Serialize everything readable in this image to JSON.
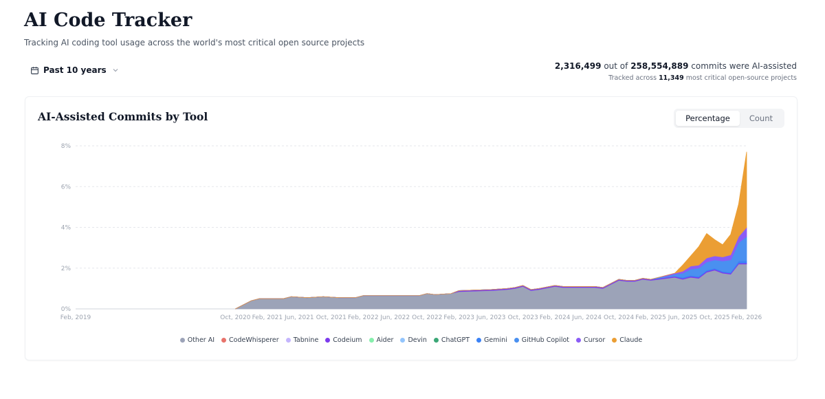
{
  "header": {
    "title": "AI Code Tracker",
    "subtitle": "Tracking AI coding tool usage across the world's most critical open source projects"
  },
  "filter": {
    "range_label": "Past 10 years",
    "icon": "calendar-icon"
  },
  "stats": {
    "ai_commits": "2,316,499",
    "out_of_text": "out of",
    "total_commits": "258,554,889",
    "suffix": "commits were AI-assisted",
    "tracked_prefix": "Tracked across",
    "projects": "11,349",
    "tracked_suffix": "most critical open-source projects"
  },
  "card": {
    "title": "AI-Assisted Commits by Tool",
    "toggle": {
      "percentage": "Percentage",
      "count": "Count",
      "active": "percentage"
    }
  },
  "chart_data": {
    "type": "area",
    "stacked": true,
    "title": "AI-Assisted Commits by Tool",
    "ylim": [
      0,
      8
    ],
    "y_ticks": [
      0,
      2,
      4,
      6,
      8
    ],
    "y_tick_labels": [
      "0%",
      "2%",
      "4%",
      "6%",
      "8%"
    ],
    "xlim": [
      "2019-02",
      "2026-02"
    ],
    "x_ticks": [
      "2019-02",
      "2020-10",
      "2021-02",
      "2021-06",
      "2021-10",
      "2022-02",
      "2022-06",
      "2022-10",
      "2023-02",
      "2023-06",
      "2023-10",
      "2024-02",
      "2024-06",
      "2024-10",
      "2025-02",
      "2025-06",
      "2025-10",
      "2026-02"
    ],
    "x_tick_labels": [
      "Feb, 2019",
      "Oct, 2020",
      "Feb, 2021",
      "Jun, 2021",
      "Oct, 2021",
      "Feb, 2022",
      "Jun, 2022",
      "Oct, 2022",
      "Feb, 2023",
      "Jun, 2023",
      "Oct, 2023",
      "Feb, 2024",
      "Jun, 2024",
      "Oct, 2024",
      "Feb, 2025",
      "Jun, 2025",
      "Oct, 2025",
      "Feb, 2026"
    ],
    "grid": true,
    "legend_position": "bottom",
    "x": [
      "2020-10",
      "2020-12",
      "2021-01",
      "2021-04",
      "2021-05",
      "2021-07",
      "2021-09",
      "2021-11",
      "2022-01",
      "2022-02",
      "2022-06",
      "2022-09",
      "2022-10",
      "2022-11",
      "2023-01",
      "2023-02",
      "2023-06",
      "2023-08",
      "2023-09",
      "2023-10",
      "2023-11",
      "2023-12",
      "2024-02",
      "2024-03",
      "2024-05",
      "2024-07",
      "2024-08",
      "2024-09",
      "2024-10",
      "2024-11",
      "2024-12",
      "2025-01",
      "2025-02",
      "2025-03",
      "2025-04",
      "2025-05",
      "2025-06",
      "2025-07",
      "2025-08",
      "2025-09",
      "2025-10",
      "2025-11",
      "2025-12",
      "2026-01",
      "2026-02"
    ],
    "series": [
      {
        "name": "Other AI",
        "color": "#9ca3b8",
        "values": [
          0,
          0.4,
          0.5,
          0.5,
          0.6,
          0.55,
          0.6,
          0.55,
          0.55,
          0.65,
          0.65,
          0.65,
          0.75,
          0.7,
          0.75,
          0.85,
          0.9,
          0.95,
          1.0,
          1.1,
          0.9,
          0.95,
          1.1,
          1.05,
          1.05,
          1.05,
          1.0,
          1.2,
          1.4,
          1.35,
          1.35,
          1.45,
          1.4,
          1.45,
          1.5,
          1.55,
          1.45,
          1.55,
          1.5,
          1.8,
          1.9,
          1.75,
          1.7,
          2.2,
          2.2
        ]
      },
      {
        "name": "CodeWhisperer",
        "color": "#e8736b",
        "values": [
          0,
          0,
          0,
          0,
          0,
          0,
          0,
          0,
          0,
          0,
          0,
          0,
          0,
          0,
          0,
          0,
          0,
          0,
          0,
          0,
          0,
          0,
          0,
          0,
          0,
          0,
          0,
          0,
          0,
          0,
          0,
          0,
          0,
          0,
          0,
          0,
          0,
          0,
          0,
          0,
          0,
          0,
          0,
          0,
          0
        ]
      },
      {
        "name": "Tabnine",
        "color": "#c4b5fd",
        "values": [
          0,
          0,
          0,
          0,
          0,
          0,
          0,
          0,
          0,
          0,
          0,
          0,
          0,
          0,
          0,
          0,
          0,
          0,
          0,
          0,
          0,
          0,
          0,
          0,
          0,
          0,
          0,
          0,
          0,
          0,
          0,
          0,
          0,
          0,
          0,
          0,
          0,
          0,
          0,
          0,
          0,
          0,
          0,
          0,
          0
        ]
      },
      {
        "name": "Codeium",
        "color": "#7c3aed",
        "values": [
          0,
          0,
          0,
          0,
          0,
          0,
          0,
          0,
          0,
          0,
          0,
          0,
          0,
          0,
          0,
          0.05,
          0.05,
          0.05,
          0.05,
          0.05,
          0.05,
          0.05,
          0.05,
          0.05,
          0.05,
          0.05,
          0.05,
          0.05,
          0.05,
          0.05,
          0.05,
          0.05,
          0.05,
          0.05,
          0.05,
          0.05,
          0.05,
          0.05,
          0.05,
          0.05,
          0.05,
          0.05,
          0.05,
          0.05,
          0.05
        ]
      },
      {
        "name": "Aider",
        "color": "#86efac",
        "values": [
          0,
          0,
          0,
          0,
          0,
          0,
          0,
          0,
          0,
          0,
          0,
          0,
          0,
          0,
          0,
          0,
          0,
          0,
          0,
          0,
          0,
          0,
          0,
          0,
          0,
          0,
          0,
          0,
          0,
          0,
          0,
          0,
          0,
          0,
          0,
          0,
          0,
          0,
          0,
          0,
          0,
          0,
          0,
          0,
          0
        ]
      },
      {
        "name": "Devin",
        "color": "#93c5fd",
        "values": [
          0,
          0,
          0,
          0,
          0,
          0,
          0,
          0,
          0,
          0,
          0,
          0,
          0,
          0,
          0,
          0,
          0,
          0,
          0,
          0,
          0,
          0,
          0,
          0,
          0,
          0,
          0,
          0,
          0,
          0,
          0,
          0,
          0,
          0,
          0,
          0,
          0,
          0,
          0,
          0,
          0,
          0,
          0,
          0,
          0
        ]
      },
      {
        "name": "ChatGPT",
        "color": "#3ba776",
        "values": [
          0,
          0,
          0,
          0,
          0,
          0,
          0,
          0,
          0,
          0,
          0,
          0,
          0,
          0,
          0,
          0,
          0,
          0,
          0,
          0,
          0,
          0,
          0,
          0,
          0,
          0,
          0,
          0,
          0,
          0,
          0,
          0,
          0,
          0,
          0,
          0,
          0,
          0,
          0,
          0,
          0,
          0,
          0,
          0,
          0
        ]
      },
      {
        "name": "Gemini",
        "color": "#3b82f6",
        "values": [
          0,
          0,
          0,
          0,
          0,
          0,
          0,
          0,
          0,
          0,
          0,
          0,
          0,
          0,
          0,
          0,
          0,
          0,
          0,
          0,
          0,
          0,
          0,
          0,
          0,
          0,
          0,
          0,
          0,
          0,
          0,
          0,
          0,
          0,
          0,
          0,
          0.05,
          0.05,
          0.05,
          0.05,
          0.05,
          0.05,
          0.05,
          0.1,
          0.1
        ]
      },
      {
        "name": "GitHub Copilot",
        "color": "#4a90f0",
        "values": [
          0,
          0,
          0,
          0,
          0,
          0,
          0,
          0,
          0,
          0,
          0,
          0,
          0,
          0,
          0,
          0,
          0,
          0,
          0,
          0,
          0,
          0,
          0,
          0,
          0,
          0,
          0,
          0,
          0,
          0,
          0,
          0,
          0,
          0.05,
          0.05,
          0.1,
          0.2,
          0.3,
          0.4,
          0.4,
          0.4,
          0.5,
          0.6,
          0.9,
          1.2
        ]
      },
      {
        "name": "Cursor",
        "color": "#8b5cf6",
        "values": [
          0,
          0,
          0,
          0,
          0,
          0,
          0,
          0,
          0,
          0,
          0,
          0,
          0,
          0,
          0,
          0,
          0,
          0,
          0,
          0,
          0,
          0,
          0,
          0,
          0,
          0,
          0,
          0,
          0,
          0,
          0,
          0,
          0,
          0,
          0.05,
          0.05,
          0.1,
          0.15,
          0.15,
          0.2,
          0.2,
          0.2,
          0.25,
          0.3,
          0.45
        ]
      },
      {
        "name": "Claude",
        "color": "#eb9e34",
        "values": [
          0,
          0,
          0,
          0,
          0,
          0,
          0,
          0,
          0,
          0,
          0,
          0,
          0,
          0,
          0,
          0,
          0,
          0,
          0,
          0,
          0,
          0,
          0,
          0,
          0,
          0,
          0,
          0,
          0,
          0,
          0,
          0,
          0,
          0,
          0,
          0,
          0.3,
          0.5,
          0.9,
          1.2,
          0.8,
          0.6,
          1.0,
          1.6,
          3.7
        ]
      }
    ]
  }
}
